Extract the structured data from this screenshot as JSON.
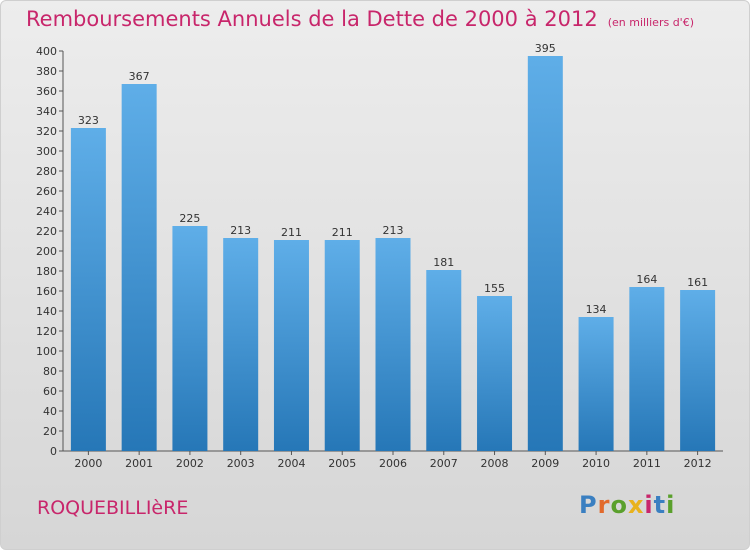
{
  "title": "Remboursements Annuels de la Dette de 2000 à 2012",
  "unit": "(en milliers d'€)",
  "commune": "ROQUEBILLIèRE",
  "logo": {
    "text": "Proxiti",
    "colors": [
      "#3a7fc1",
      "#e26a2c",
      "#5aa02c",
      "#e9b21c",
      "#c8266b",
      "#3a7fc1",
      "#5aa02c"
    ]
  },
  "colors": {
    "bar_light": "#5faee8",
    "bar_dark": "#2677b7",
    "title": "#c8266b"
  },
  "chart_data": {
    "type": "bar",
    "categories": [
      "2000",
      "2001",
      "2002",
      "2003",
      "2004",
      "2005",
      "2006",
      "2007",
      "2008",
      "2009",
      "2010",
      "2011",
      "2012"
    ],
    "values": [
      323,
      367,
      225,
      213,
      211,
      211,
      213,
      181,
      155,
      395,
      134,
      164,
      161
    ],
    "ylim": [
      0,
      400
    ],
    "yticks": [
      0,
      20,
      40,
      60,
      80,
      100,
      120,
      140,
      160,
      180,
      200,
      220,
      240,
      260,
      280,
      300,
      320,
      340,
      360,
      380,
      400
    ],
    "grid": false,
    "legend": "none"
  }
}
